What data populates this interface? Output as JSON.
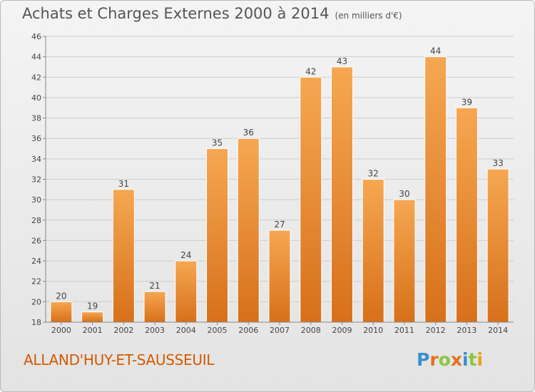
{
  "title": "Achats et Charges Externes 2000 à 2014",
  "subtitle": "(en milliers d'€)",
  "place_name": "ALLAND'HUY-ET-SAUSSEUIL",
  "logo": {
    "letters": [
      "P",
      "r",
      "o",
      "x",
      "i",
      "t",
      "i"
    ],
    "colors": [
      "#3a8fd0",
      "#e8701a",
      "#8cc63f",
      "#e8701a",
      "#3a8fd0",
      "#8cc63f",
      "#e8a21a"
    ]
  },
  "colors": {
    "bar_light": "#f6a752",
    "bar_dark": "#d7701a",
    "axis": "#888888",
    "grid": "#cccccc",
    "text": "#444444"
  },
  "chart_data": {
    "type": "bar",
    "title": "Achats et Charges Externes 2000 à 2014",
    "subtitle": "(en milliers d'€)",
    "categories": [
      "2000",
      "2001",
      "2002",
      "2003",
      "2004",
      "2005",
      "2006",
      "2007",
      "2008",
      "2009",
      "2010",
      "2011",
      "2012",
      "2013",
      "2014"
    ],
    "values": [
      20,
      19,
      31,
      21,
      24,
      35,
      36,
      27,
      42,
      43,
      32,
      30,
      44,
      39,
      33
    ],
    "ylim": [
      18,
      46
    ],
    "yticks": [
      18,
      20,
      22,
      24,
      26,
      28,
      30,
      32,
      34,
      36,
      38,
      40,
      42,
      44,
      46
    ],
    "grid": true,
    "data_labels": true
  }
}
